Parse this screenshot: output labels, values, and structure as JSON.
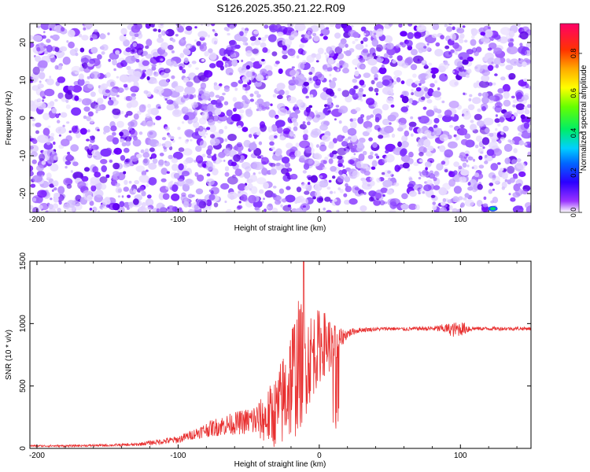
{
  "figure": {
    "title": "S126.2025.350.21.22.R09"
  },
  "chart_data": [
    {
      "type": "heatmap",
      "title": "S126.2025.350.21.22.R09",
      "xlabel": "Height of straight line (km)",
      "ylabel": "Frequency (Hz)",
      "xlim": [
        -205,
        150
      ],
      "ylim": [
        -25,
        25
      ],
      "x_ticks": [
        -200,
        -100,
        0,
        100
      ],
      "x_tick_labels": [
        "-200",
        "-100",
        "0",
        "100"
      ],
      "y_ticks": [
        -20,
        -10,
        0,
        10,
        20
      ],
      "y_tick_labels": [
        "-20",
        "-10",
        "0",
        "10",
        "20"
      ],
      "colorbar": {
        "label": "Normalized spectral amplitude",
        "range": [
          0,
          0.95
        ],
        "ticks": [
          0.0,
          0.2,
          0.4,
          0.6,
          0.8
        ],
        "tick_labels": [
          "0.0",
          "0.2",
          "0.4",
          "0.6",
          "0.8"
        ],
        "colormap": [
          "#ffffff",
          "#7a00ff",
          "#0000ff",
          "#00c8ff",
          "#00ff00",
          "#ffff00",
          "#ff9900",
          "#ff0000",
          "#ff0080"
        ]
      },
      "description_of_values": "Speckled noise field, mostly amplitudes 0.0-0.1 (white to violet), nearly uniform across the full x and frequency range; small brighter spot near x=120 km at about -24 Hz",
      "hotspot": {
        "x": 123,
        "y": -24,
        "value": 0.25
      },
      "grid": false
    },
    {
      "type": "line",
      "xlabel": "Height of straight line (km)",
      "ylabel": "SNR (10 * v/v)",
      "xlim": [
        -205,
        150
      ],
      "ylim": [
        0,
        1500
      ],
      "x_ticks": [
        -200,
        -100,
        0,
        100
      ],
      "x_tick_labels": [
        "-200",
        "-100",
        "0",
        "100"
      ],
      "y_ticks": [
        0,
        500,
        1000,
        1500
      ],
      "y_tick_labels": [
        "0",
        "500",
        "1000",
        "1500"
      ],
      "color": "#e83030",
      "series": [
        {
          "x": [
            -205,
            -180,
            -150,
            -130,
            -120,
            -100,
            -90,
            -80,
            -70,
            -60,
            -50,
            -40,
            -35,
            -30,
            -25,
            -20,
            -15,
            -10,
            -5,
            0,
            5,
            10,
            15,
            20,
            25,
            30,
            40,
            50,
            60,
            70,
            80,
            90,
            95,
            100,
            105,
            110,
            120,
            130,
            140,
            150
          ],
          "y": [
            20,
            20,
            25,
            30,
            45,
            70,
            110,
            150,
            180,
            200,
            220,
            230,
            260,
            300,
            400,
            550,
            650,
            700,
            750,
            820,
            850,
            800,
            880,
            920,
            940,
            950,
            955,
            960,
            955,
            960,
            960,
            960,
            950,
            960,
            960,
            960,
            960,
            960,
            960,
            960
          ],
          "noise_envelope": [
            8,
            8,
            10,
            12,
            18,
            30,
            40,
            60,
            80,
            90,
            110,
            180,
            250,
            300,
            400,
            500,
            550,
            450,
            350,
            300,
            250,
            200,
            80,
            40,
            25,
            20,
            15,
            15,
            15,
            15,
            20,
            40,
            60,
            60,
            40,
            15,
            15,
            15,
            15,
            15
          ]
        }
      ],
      "peak": {
        "x": -11,
        "y": 1500
      },
      "grid": false
    }
  ]
}
